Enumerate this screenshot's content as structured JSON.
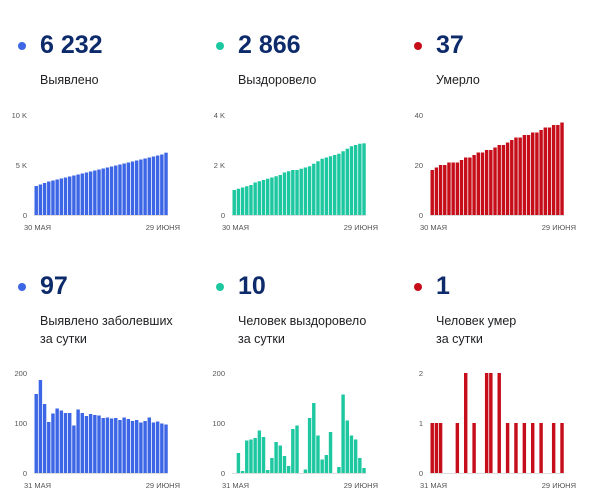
{
  "colors": {
    "blue": "#3d66e6",
    "green": "#1dc7a0",
    "red": "#c50e1a",
    "number": "#0d2a6b"
  },
  "panels": [
    {
      "value": "6 232",
      "label_lines": [
        "Выявлено"
      ],
      "color": "blue"
    },
    {
      "value": "2 866",
      "label_lines": [
        "Выздоровело"
      ],
      "color": "green"
    },
    {
      "value": "37",
      "label_lines": [
        "Умерло"
      ],
      "color": "red"
    },
    {
      "value": "97",
      "label_lines": [
        "Выявлено заболевших",
        "за сутки"
      ],
      "color": "blue"
    },
    {
      "value": "10",
      "label_lines": [
        "Человек выздоровело",
        "за сутки"
      ],
      "color": "green"
    },
    {
      "value": "1",
      "label_lines": [
        "Человек умер",
        "за сутки"
      ],
      "color": "red"
    }
  ],
  "chart_data": [
    {
      "type": "bar",
      "color": "blue",
      "ylim": [
        0,
        10000
      ],
      "yticks": [
        "0",
        "5 K",
        "10 K"
      ],
      "xticks": [
        "30 МАЯ",
        "29 ИЮНЯ"
      ],
      "values": [
        2900,
        3050,
        3200,
        3350,
        3450,
        3550,
        3650,
        3750,
        3850,
        3950,
        4050,
        4150,
        4250,
        4350,
        4450,
        4550,
        4650,
        4750,
        4850,
        4950,
        5050,
        5150,
        5250,
        5350,
        5450,
        5550,
        5650,
        5750,
        5850,
        5950,
        6050,
        6232
      ]
    },
    {
      "type": "bar",
      "color": "green",
      "ylim": [
        0,
        4000
      ],
      "yticks": [
        "0",
        "2 K",
        "4 K"
      ],
      "xticks": [
        "30 МАЯ",
        "29 ИЮНЯ"
      ],
      "values": [
        1000,
        1050,
        1100,
        1150,
        1200,
        1300,
        1350,
        1400,
        1450,
        1500,
        1550,
        1600,
        1700,
        1750,
        1800,
        1800,
        1850,
        1900,
        1950,
        2050,
        2150,
        2250,
        2300,
        2350,
        2400,
        2450,
        2550,
        2650,
        2750,
        2800,
        2850,
        2866
      ]
    },
    {
      "type": "bar",
      "color": "red",
      "ylim": [
        0,
        40
      ],
      "yticks": [
        "0",
        "20",
        "40"
      ],
      "xticks": [
        "30 МАЯ",
        "29 ИЮНЯ"
      ],
      "values": [
        18,
        19,
        20,
        20,
        21,
        21,
        21,
        22,
        23,
        23,
        24,
        25,
        25,
        26,
        26,
        27,
        28,
        28,
        29,
        30,
        31,
        31,
        32,
        32,
        33,
        33,
        34,
        35,
        35,
        36,
        36,
        37
      ]
    },
    {
      "type": "bar",
      "color": "blue",
      "ylim": [
        0,
        200
      ],
      "yticks": [
        "0",
        "100",
        "200"
      ],
      "xticks": [
        "31 МАЯ",
        "29 ИЮНЯ"
      ],
      "values": [
        158,
        186,
        138,
        102,
        119,
        129,
        125,
        120,
        120,
        95,
        127,
        120,
        114,
        118,
        116,
        115,
        110,
        111,
        109,
        110,
        106,
        111,
        108,
        104,
        106,
        101,
        104,
        111,
        101,
        103,
        99,
        97
      ]
    },
    {
      "type": "bar",
      "color": "green",
      "ylim": [
        0,
        200
      ],
      "yticks": [
        "0",
        "100",
        "200"
      ],
      "xticks": [
        "31 МАЯ",
        "29 ИЮНЯ"
      ],
      "values": [
        0,
        40,
        4,
        65,
        67,
        70,
        85,
        72,
        6,
        30,
        62,
        55,
        34,
        14,
        88,
        95,
        0,
        7,
        110,
        140,
        75,
        27,
        36,
        82,
        0,
        12,
        157,
        105,
        75,
        67,
        30,
        10
      ]
    },
    {
      "type": "bar",
      "color": "red",
      "ylim": [
        0,
        2
      ],
      "yticks": [
        "0",
        "1",
        "2"
      ],
      "xticks": [
        "31 МАЯ",
        "29 ИЮНЯ"
      ],
      "values": [
        1,
        1,
        1,
        0,
        0,
        0,
        1,
        0,
        2,
        0,
        1,
        0,
        0,
        2,
        2,
        0,
        2,
        0,
        1,
        0,
        1,
        0,
        1,
        0,
        1,
        0,
        1,
        0,
        0,
        1,
        0,
        1
      ]
    }
  ]
}
